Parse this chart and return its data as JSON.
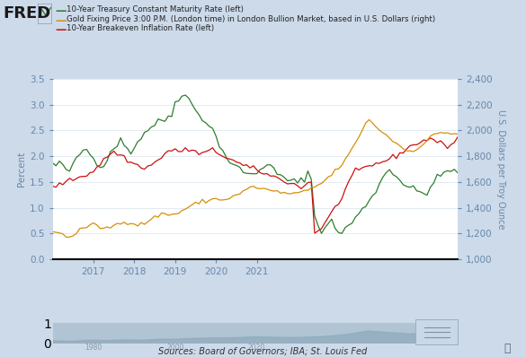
{
  "background_color": "#ccdaea",
  "plot_bg_color": "#ffffff",
  "left_axis_label": "Percent",
  "right_axis_label": "U.S. Dollars per Troy Ounce",
  "source_text": "Sources: Board of Governors; IBA; St. Louis Fed",
  "left_ylim": [
    0.0,
    3.5
  ],
  "right_ylim": [
    1000,
    2400
  ],
  "left_yticks": [
    0.0,
    0.5,
    1.0,
    1.5,
    2.0,
    2.5,
    3.0,
    3.5
  ],
  "right_yticks": [
    1000,
    1200,
    1400,
    1600,
    1800,
    2000,
    2200,
    2400
  ],
  "legend_entries": [
    "10-Year Treasury Constant Maturity Rate (left)",
    "Gold Fixing Price 3:00 P.M. (London time) in London Bullion Market, based in U.S. Dollars (right)",
    "10-Year Breakeven Inflation Rate (left)"
  ],
  "line_colors": [
    "#2e7d2e",
    "#d4900a",
    "#cc1111"
  ],
  "axis_tick_color": "#6688aa",
  "grid_color": "#dde8f0",
  "xtick_labels": [
    "2017",
    "2018",
    "2019",
    "2020",
    "2021"
  ],
  "green_data_y": [
    1.85,
    1.82,
    1.88,
    1.78,
    1.75,
    1.72,
    1.8,
    1.95,
    2.05,
    2.1,
    2.15,
    2.05,
    1.95,
    1.9,
    1.85,
    1.82,
    1.95,
    2.08,
    2.18,
    2.25,
    2.3,
    2.22,
    2.15,
    2.1,
    2.18,
    2.28,
    2.38,
    2.45,
    2.52,
    2.58,
    2.62,
    2.65,
    2.7,
    2.72,
    2.75,
    2.82,
    3.05,
    3.15,
    3.22,
    3.18,
    3.1,
    3.0,
    2.9,
    2.82,
    2.75,
    2.68,
    2.6,
    2.5,
    2.38,
    2.25,
    2.1,
    2.0,
    1.9,
    1.82,
    1.78,
    1.75,
    1.72,
    1.68,
    1.65,
    1.62,
    1.68,
    1.75,
    1.82,
    1.88,
    1.8,
    1.72,
    1.65,
    1.6,
    1.58,
    1.55,
    1.52,
    1.5,
    1.48,
    1.52,
    1.6,
    1.68,
    1.55,
    0.85,
    0.65,
    0.58,
    0.62,
    0.68,
    0.72,
    0.62,
    0.55,
    0.52,
    0.58,
    0.65,
    0.72,
    0.8,
    0.88,
    0.95,
    1.05,
    1.15,
    1.25,
    1.35,
    1.45,
    1.58,
    1.68,
    1.75,
    1.7,
    1.62,
    1.55,
    1.48,
    1.42,
    1.38,
    1.35,
    1.32,
    1.3,
    1.28,
    1.32,
    1.4,
    1.48,
    1.55,
    1.62,
    1.68,
    1.72,
    1.75,
    1.7,
    1.65
  ],
  "red_data_y": [
    1.4,
    1.42,
    1.45,
    1.48,
    1.5,
    1.52,
    1.55,
    1.58,
    1.6,
    1.62,
    1.65,
    1.68,
    1.72,
    1.78,
    1.85,
    1.92,
    2.0,
    2.05,
    2.08,
    2.05,
    2.02,
    1.98,
    1.92,
    1.88,
    1.85,
    1.82,
    1.8,
    1.78,
    1.8,
    1.82,
    1.88,
    1.92,
    1.98,
    2.05,
    2.1,
    2.12,
    2.1,
    2.08,
    2.12,
    2.15,
    2.12,
    2.1,
    2.08,
    2.05,
    2.05,
    2.08,
    2.1,
    2.12,
    2.08,
    2.05,
    2.02,
    1.98,
    1.95,
    1.92,
    1.88,
    1.85,
    1.82,
    1.8,
    1.78,
    1.75,
    1.72,
    1.7,
    1.68,
    1.65,
    1.62,
    1.6,
    1.58,
    1.55,
    1.52,
    1.5,
    1.48,
    1.45,
    1.42,
    1.4,
    1.42,
    1.48,
    1.52,
    0.5,
    0.55,
    0.62,
    0.7,
    0.8,
    0.9,
    1.0,
    1.1,
    1.2,
    1.35,
    1.5,
    1.62,
    1.68,
    1.72,
    1.75,
    1.78,
    1.8,
    1.82,
    1.85,
    1.88,
    1.9,
    1.92,
    1.95,
    1.98,
    2.0,
    2.05,
    2.1,
    2.15,
    2.18,
    2.22,
    2.25,
    2.28,
    2.3,
    2.32,
    2.35,
    2.32,
    2.28,
    2.25,
    2.22,
    2.2,
    2.22,
    2.28,
    2.35
  ],
  "gold_data_y": [
    1220,
    1210,
    1200,
    1190,
    1180,
    1175,
    1185,
    1205,
    1225,
    1240,
    1255,
    1260,
    1265,
    1258,
    1250,
    1245,
    1240,
    1248,
    1260,
    1272,
    1280,
    1288,
    1295,
    1285,
    1275,
    1268,
    1272,
    1282,
    1295,
    1310,
    1325,
    1338,
    1350,
    1355,
    1348,
    1345,
    1350,
    1360,
    1378,
    1392,
    1405,
    1418,
    1430,
    1440,
    1448,
    1452,
    1458,
    1465,
    1470,
    1465,
    1462,
    1468,
    1475,
    1485,
    1498,
    1512,
    1525,
    1540,
    1555,
    1562,
    1558,
    1552,
    1545,
    1540,
    1535,
    1528,
    1522,
    1518,
    1515,
    1512,
    1510,
    1508,
    1510,
    1518,
    1525,
    1535,
    1548,
    1562,
    1575,
    1590,
    1612,
    1635,
    1658,
    1682,
    1710,
    1740,
    1770,
    1810,
    1858,
    1900,
    1950,
    2010,
    2058,
    2090,
    2050,
    2030,
    2010,
    1985,
    1965,
    1945,
    1920,
    1900,
    1880,
    1862,
    1845,
    1840,
    1848,
    1862,
    1878,
    1895,
    1918,
    1945,
    1965,
    1978,
    1985,
    1988,
    1982,
    1975,
    1972,
    1980
  ]
}
